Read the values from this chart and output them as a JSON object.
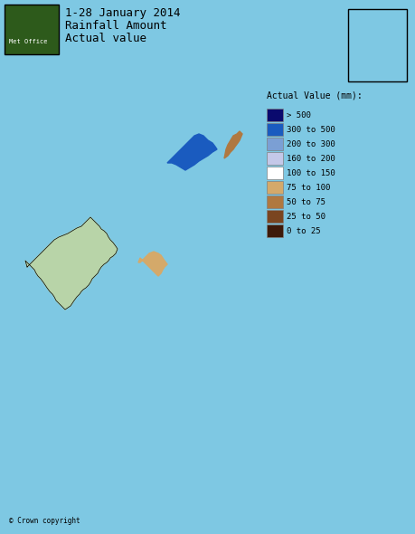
{
  "title_line1": "1-28 January 2014",
  "title_line2": "Rainfall Amount",
  "title_line3": "Actual value",
  "legend_title": "Actual Value (mm):",
  "legend_labels": [
    "> 500",
    "300 to 500",
    "200 to 300",
    "160 to 200",
    "100 to 150",
    "75 to 100",
    "50 to 75",
    "25 to 50",
    "0 to 25"
  ],
  "legend_colors": [
    "#0a0a6e",
    "#1a5bbf",
    "#7b9fd4",
    "#c4c8e8",
    "#ffffff",
    "#d4a96a",
    "#b07840",
    "#7a4520",
    "#3d1a0a"
  ],
  "background_color": "#7ec8e3",
  "ireland_color": "#b8d4a8",
  "copyright_text": "© Crown copyright",
  "figsize": [
    4.6,
    5.9
  ],
  "dpi": 100
}
